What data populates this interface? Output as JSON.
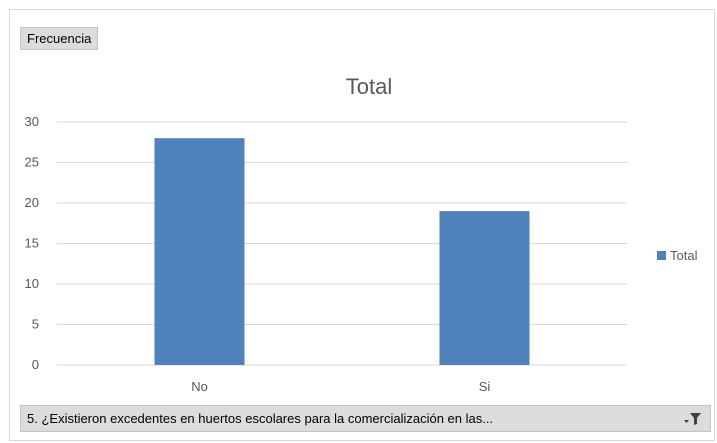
{
  "field_button": {
    "label": "Frecuencia"
  },
  "filter": {
    "label": "5. ¿Existieron excedentes en huertos escolares para la comercialización en las..."
  },
  "colors": {
    "bar": "#4f81bd",
    "grid": "#d9d9d9",
    "text": "#595959"
  },
  "chart_data": {
    "type": "bar",
    "title": "Total",
    "categories": [
      "No",
      "Si"
    ],
    "series": [
      {
        "name": "Total",
        "values": [
          28,
          19
        ]
      }
    ],
    "ylim": [
      0,
      30
    ],
    "yticks": [
      0,
      5,
      10,
      15,
      20,
      25,
      30
    ],
    "grid": true,
    "legend": "right"
  }
}
